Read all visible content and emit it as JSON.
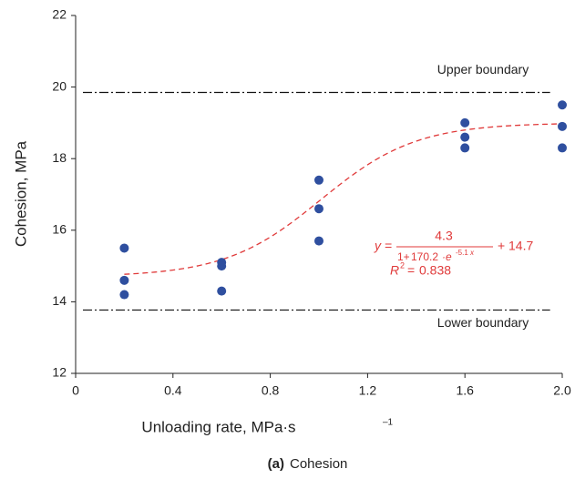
{
  "chart_data": {
    "type": "scatter",
    "x_label": "Unloading rate, MPa·s",
    "x_label_sup": "–1",
    "y_label": "Cohesion, MPa",
    "caption_bold": "(a)",
    "caption": "Cohesion",
    "xlim": [
      0,
      2
    ],
    "ylim": [
      12,
      22
    ],
    "xticks": [
      0,
      0.4,
      0.8,
      1.2,
      1.6,
      {
        "value": 2,
        "label": "2.0"
      }
    ],
    "yticks": [
      12,
      14,
      16,
      18,
      20,
      22
    ],
    "series": [
      {
        "color": "#2f4f9f",
        "x": [
          0.2,
          0.2,
          0.2,
          0.6,
          0.6,
          0.6,
          1.0,
          1.0,
          1.0,
          1.6,
          1.6,
          1.6,
          2.0,
          2.0,
          2.0
        ],
        "values": [
          15.5,
          14.6,
          14.2,
          15.1,
          15.0,
          14.3,
          17.4,
          16.6,
          15.7,
          19.0,
          18.6,
          18.3,
          19.5,
          18.9,
          18.3
        ]
      }
    ],
    "fit": {
      "color": "#e03a3a",
      "x_range": [
        0.2,
        2.0
      ],
      "lhs": "y =",
      "numerator": 4.3,
      "den_prefix": "1+",
      "b": 170.2,
      "e_text": "·e",
      "k": -5.1,
      "exp_var": "x",
      "plus": "+",
      "c": 14.7,
      "r2_label": "R",
      "r2_sup": "2",
      "r2_eq": "=",
      "r2": 0.838
    },
    "boundaries": [
      {
        "label": "Upper boundary",
        "value": 19.85,
        "x_range": [
          0.03,
          1.95
        ]
      },
      {
        "label": "Lower boundary",
        "value": 13.77,
        "x_range": [
          0.03,
          1.95
        ]
      }
    ]
  }
}
